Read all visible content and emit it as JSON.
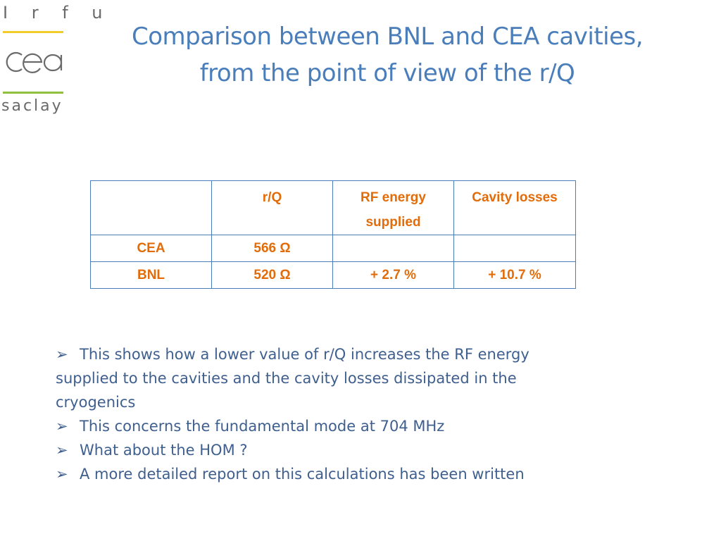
{
  "logo": {
    "top_text": "I r f u",
    "middle_text": "cea",
    "bottom_text": "saclay"
  },
  "title": {
    "line1": "Comparison between BNL and CEA cavities,",
    "line2": "from the point of view of the r/Q"
  },
  "table": {
    "headers": [
      "",
      "r/Q",
      "RF energy supplied",
      "Cavity losses"
    ],
    "rows": [
      [
        "CEA",
        "566 Ω",
        "",
        ""
      ],
      [
        "BNL",
        "520 Ω",
        "+ 2.7 %",
        "+ 10.7 %"
      ]
    ]
  },
  "bullets": [
    "This shows how a lower value of r/Q increases the RF energy supplied to the cavities and the cavity losses dissipated in the cryogenics",
    "This concerns the fundamental mode at 704 MHz",
    "What about the HOM ?",
    "A more detailed report on this calculations has been written"
  ],
  "colors": {
    "title": "#4a7ebb",
    "table_text": "#e36c0a",
    "table_border": "#4a7ebb",
    "bullet_text": "#3f5f8f",
    "logo_yellow": "#f1cc2a",
    "logo_green": "#8fc13f",
    "logo_gray": "#6a6a6a"
  },
  "icons": {
    "bullet": "arrowhead-bullet-icon"
  }
}
